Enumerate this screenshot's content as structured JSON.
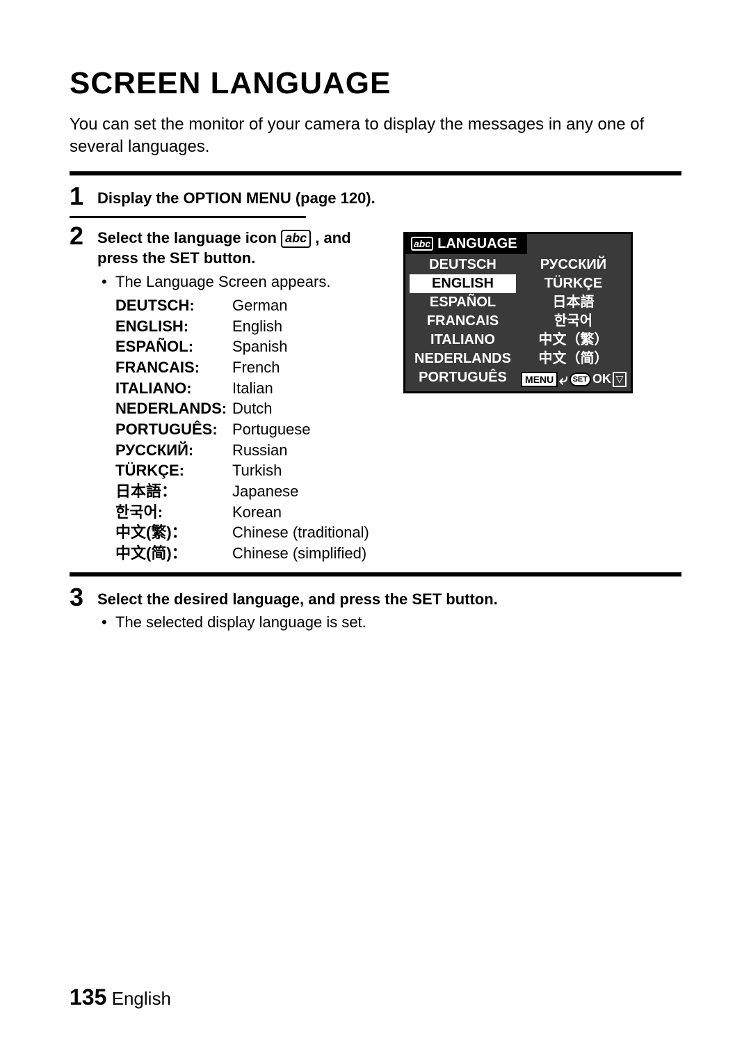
{
  "title": "SCREEN LANGUAGE",
  "intro": "You can set the monitor of your camera to display the messages in any one of several languages.",
  "steps": {
    "1": {
      "heading": "Display the OPTION MENU (page 120)."
    },
    "2": {
      "heading_pre": "Select the language icon ",
      "heading_post": ", and press the SET button.",
      "icon_text": "abc",
      "bullet": "The Language Screen appears.",
      "langs": [
        {
          "label": "DEUTSCH:",
          "val": "German"
        },
        {
          "label": "ENGLISH:",
          "val": "English"
        },
        {
          "label": "ESPAÑOL:",
          "val": "Spanish"
        },
        {
          "label": "FRANCAIS:",
          "val": "French"
        },
        {
          "label": "ITALIANO:",
          "val": "Italian"
        },
        {
          "label": "NEDERLANDS:",
          "val": "Dutch"
        },
        {
          "label": "PORTUGUÊS:",
          "val": "Portuguese"
        },
        {
          "label": "РУССКИЙ:",
          "val": "Russian"
        },
        {
          "label": "TÜRKÇE:",
          "val": "Turkish"
        },
        {
          "label": "日本語：",
          "val": "Japanese"
        },
        {
          "label": "한국어:",
          "val": "Korean"
        },
        {
          "label": "中文(繁)：",
          "val": "Chinese (traditional)"
        },
        {
          "label": "中文(简)：",
          "val": "Chinese (simplified)"
        }
      ]
    },
    "3": {
      "heading": "Select the desired language, and press the SET button.",
      "bullet": "The selected display language is set."
    }
  },
  "lcd": {
    "abc": "abc",
    "title": "LANGUAGE",
    "left_col": [
      "DEUTSCH",
      "ENGLISH",
      "ESPAÑOL",
      "FRANCAIS",
      "ITALIANO",
      "NEDERLANDS",
      "PORTUGUÊS"
    ],
    "right_col": [
      "РУССКИЙ",
      "TÜRKÇE",
      "日本語",
      "한국어",
      "中文（繁）",
      "中文（简）"
    ],
    "selected_index_left": 1,
    "menu_label": "MENU",
    "back_glyph": "⤶",
    "set_label": "SET",
    "ok_label": "OK",
    "arrow_glyph": "▽",
    "colors": {
      "bg": "#3a3a3a",
      "fg": "#ffffff",
      "sel_bg": "#ffffff",
      "sel_fg": "#000000"
    }
  },
  "footer": {
    "page_num": "135",
    "lang": "English"
  }
}
